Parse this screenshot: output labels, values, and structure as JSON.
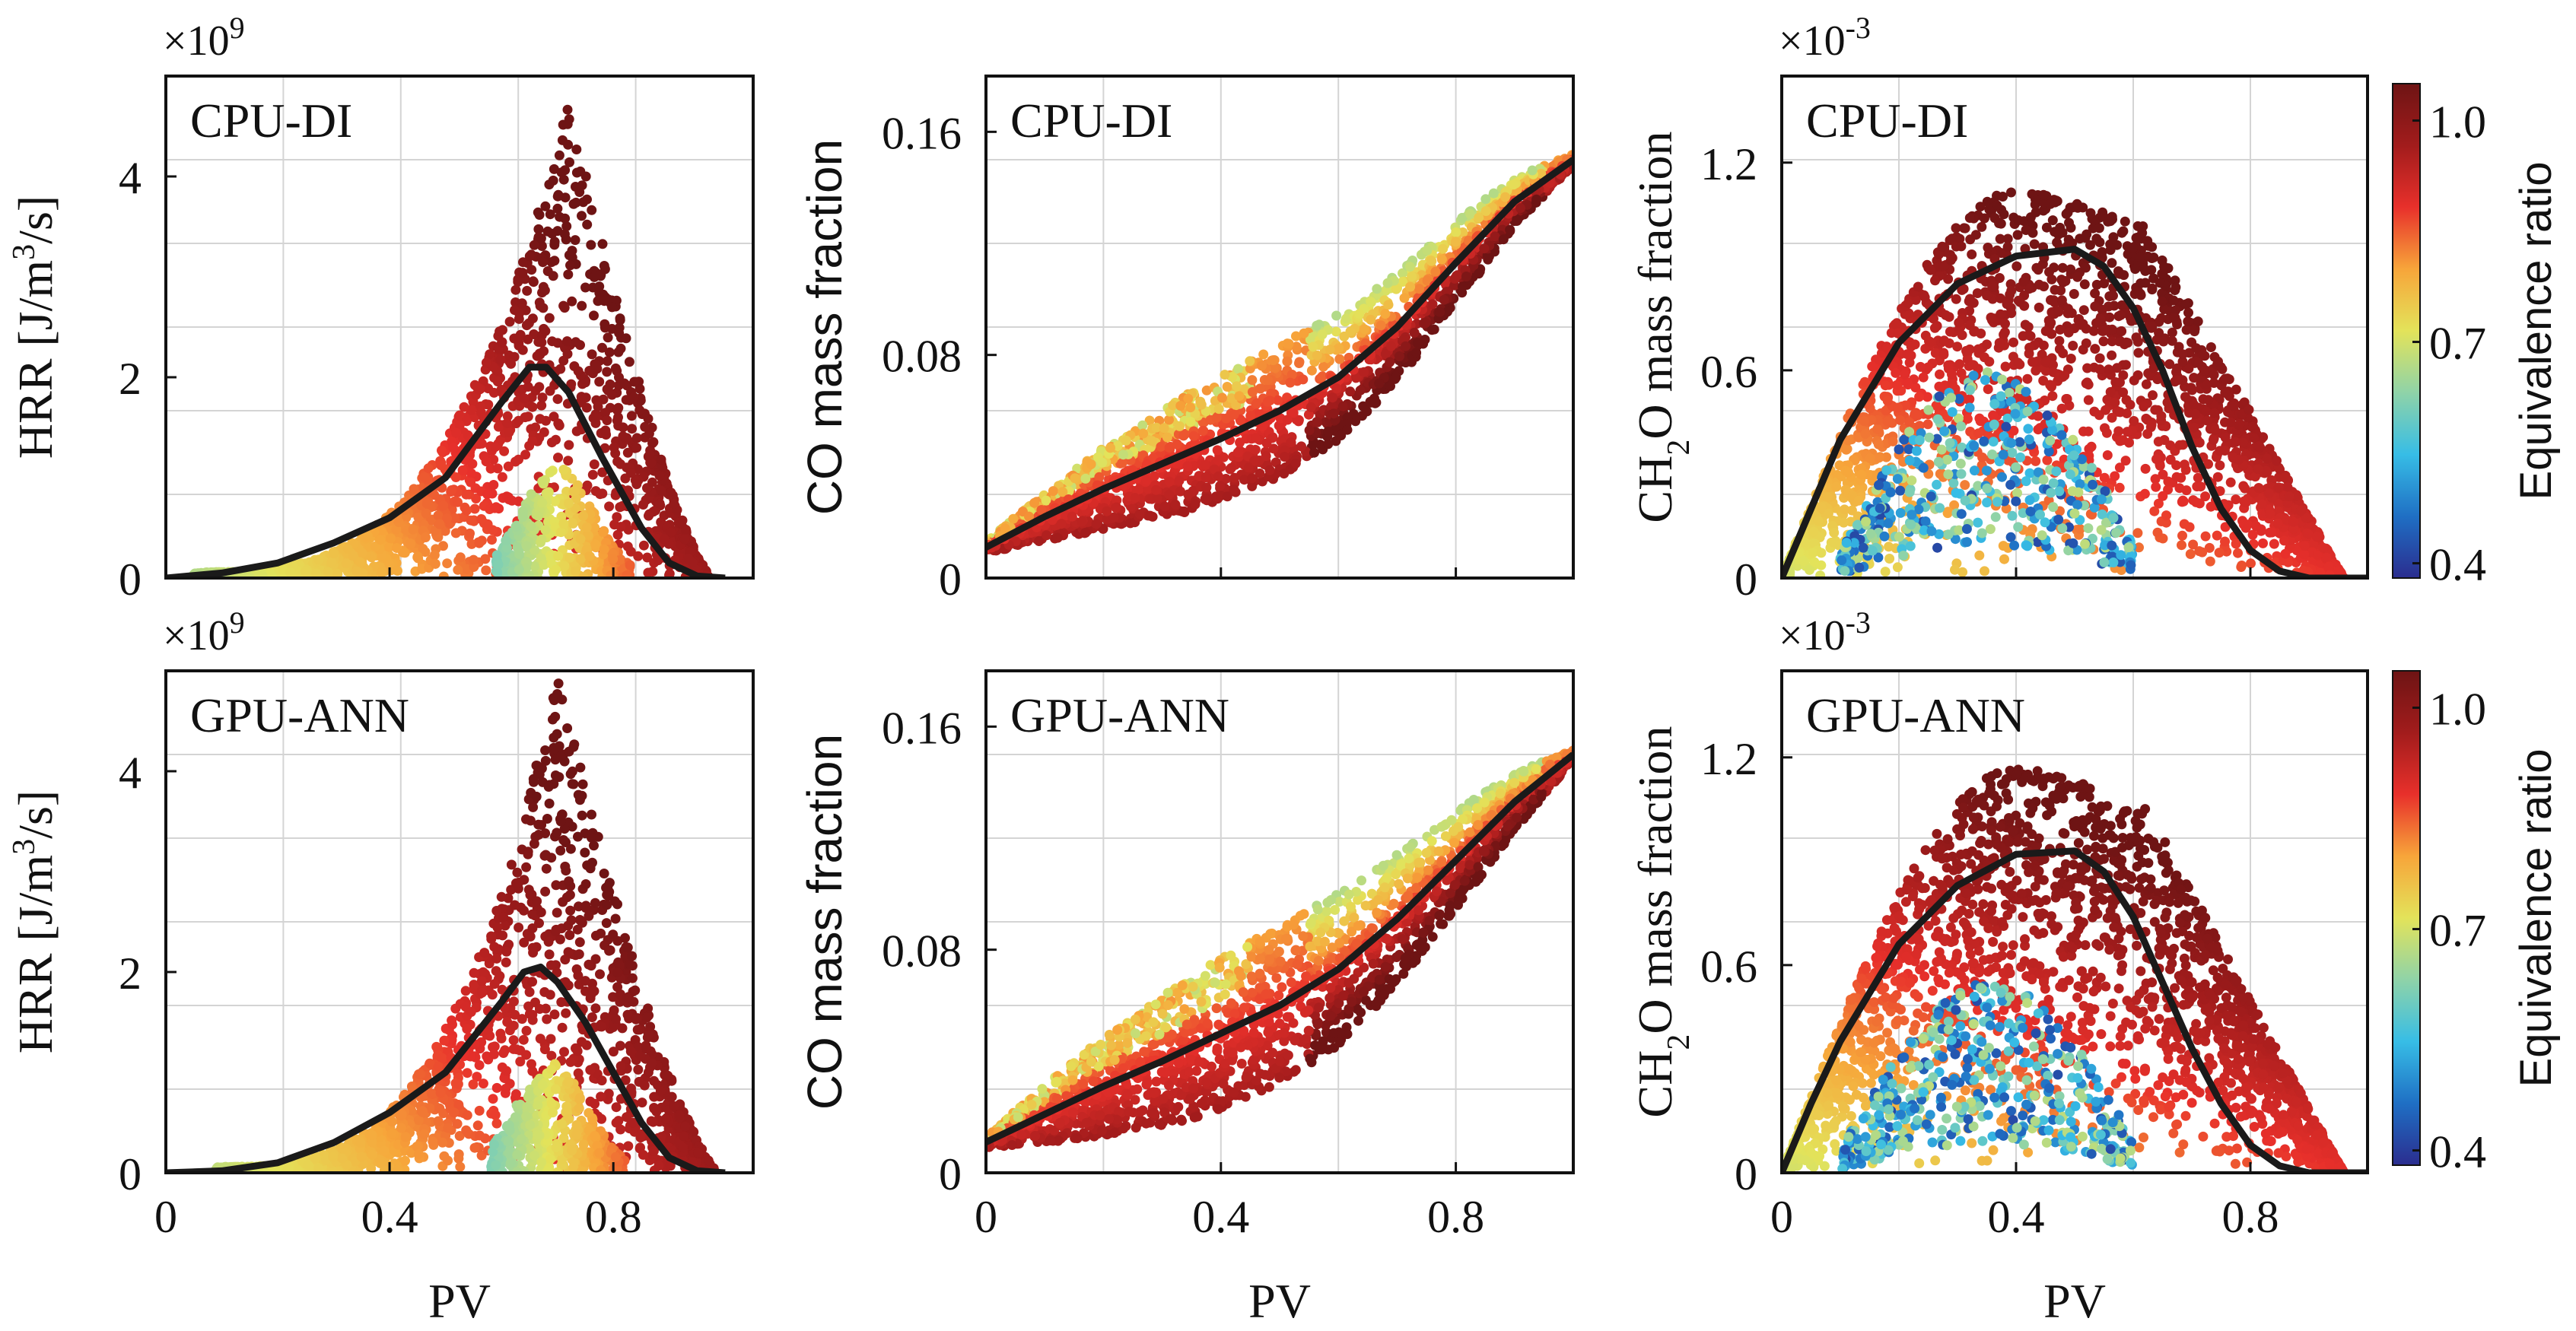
{
  "chart_data": [
    {
      "id": "hrr-cpu",
      "type": "scatter",
      "panel_label": "CPU-DI",
      "ylabel_pre": "HRR [J/m",
      "ylabel_sup": "3",
      "ylabel_post": "/s]",
      "xlabel": "",
      "scale_base": "×10",
      "scale_exp": "9",
      "xlim": [
        0,
        1.05
      ],
      "ylim": [
        0,
        5
      ],
      "xticks": [
        {
          "v": 0,
          "t": "0"
        },
        {
          "v": 0.4,
          "t": "0.4"
        },
        {
          "v": 0.8,
          "t": "0.8"
        }
      ],
      "yticks": [
        {
          "v": 0,
          "t": "0"
        },
        {
          "v": 2,
          "t": "2"
        },
        {
          "v": 4,
          "t": "4"
        }
      ],
      "show_xticklabels": false,
      "grid": true,
      "cloud": {
        "kind": "hrr",
        "peak_x": 0.72,
        "peak_y": 4.7,
        "left_x": 0.05,
        "right_x": 0.97,
        "bulge_x": 0.73
      },
      "mean_curve": {
        "x": [
          0,
          0.1,
          0.2,
          0.3,
          0.4,
          0.5,
          0.6,
          0.65,
          0.68,
          0.72,
          0.78,
          0.85,
          0.9,
          0.95,
          1.0
        ],
        "y": [
          0,
          0.05,
          0.15,
          0.35,
          0.6,
          1.0,
          1.75,
          2.1,
          2.1,
          1.85,
          1.2,
          0.5,
          0.15,
          0.02,
          0
        ]
      }
    },
    {
      "id": "co-cpu",
      "type": "scatter",
      "panel_label": "CPU-DI",
      "ylabel_pre": "CO mass fraction",
      "ylabel_sup": "",
      "ylabel_post": "",
      "xlabel": "",
      "scale_base": "",
      "scale_exp": "",
      "xlim": [
        0,
        1.0
      ],
      "ylim": [
        0,
        0.18
      ],
      "xticks": [
        {
          "v": 0,
          "t": "0"
        },
        {
          "v": 0.4,
          "t": "0.4"
        },
        {
          "v": 0.8,
          "t": "0.8"
        }
      ],
      "yticks": [
        {
          "v": 0,
          "t": "0"
        },
        {
          "v": 0.08,
          "t": "0.08"
        },
        {
          "v": 0.16,
          "t": "0.16"
        }
      ],
      "show_xticklabels": false,
      "grid": true,
      "cloud": {
        "kind": "co",
        "spread": 0.018
      },
      "mean_curve": {
        "x": [
          0,
          0.1,
          0.2,
          0.3,
          0.4,
          0.5,
          0.6,
          0.7,
          0.8,
          0.9,
          1.0
        ],
        "y": [
          0.011,
          0.022,
          0.032,
          0.041,
          0.05,
          0.06,
          0.072,
          0.09,
          0.113,
          0.135,
          0.15
        ]
      }
    },
    {
      "id": "ch2o-cpu",
      "type": "scatter",
      "panel_label": "CPU-DI",
      "ylabel_pre": "CH",
      "ylabel_sub": "2",
      "ylabel_post": "O mass fraction",
      "xlabel": "",
      "scale_base": "×10",
      "scale_exp": "-3",
      "xlim": [
        0,
        1.0
      ],
      "ylim": [
        0,
        1.45
      ],
      "xticks": [
        {
          "v": 0,
          "t": "0"
        },
        {
          "v": 0.4,
          "t": "0.4"
        },
        {
          "v": 0.8,
          "t": "0.8"
        }
      ],
      "yticks": [
        {
          "v": 0,
          "t": "0"
        },
        {
          "v": 0.6,
          "t": "0.6"
        },
        {
          "v": 1.2,
          "t": "1.2"
        }
      ],
      "show_xticklabels": false,
      "grid": true,
      "cloud": {
        "kind": "ch2o",
        "top_x": 0.42,
        "top_y": 1.13,
        "right_x": 0.96,
        "lean_x": 0.32,
        "lean_y": 0.6
      },
      "mean_curve": {
        "x": [
          0,
          0.05,
          0.1,
          0.2,
          0.3,
          0.4,
          0.5,
          0.55,
          0.6,
          0.65,
          0.7,
          0.75,
          0.8,
          0.85,
          0.9,
          1.0
        ],
        "y": [
          0,
          0.2,
          0.4,
          0.68,
          0.85,
          0.93,
          0.95,
          0.9,
          0.78,
          0.6,
          0.38,
          0.2,
          0.08,
          0.02,
          0,
          0
        ]
      },
      "colorbar": {
        "label": "Equivalence ratio",
        "ticks": [
          {
            "v": 0.4,
            "t": "0.4"
          },
          {
            "v": 0.7,
            "t": "0.7"
          },
          {
            "v": 1.0,
            "t": "1.0"
          }
        ],
        "range": [
          0.38,
          1.05
        ]
      }
    },
    {
      "id": "hrr-gpu",
      "type": "scatter",
      "panel_label": "GPU-ANN",
      "ylabel_pre": "HRR [J/m",
      "ylabel_sup": "3",
      "ylabel_post": "/s]",
      "xlabel": "PV",
      "scale_base": "×10",
      "scale_exp": "9",
      "xlim": [
        0,
        1.05
      ],
      "ylim": [
        0,
        5
      ],
      "xticks": [
        {
          "v": 0,
          "t": "0"
        },
        {
          "v": 0.4,
          "t": "0.4"
        },
        {
          "v": 0.8,
          "t": "0.8"
        }
      ],
      "yticks": [
        {
          "v": 0,
          "t": "0"
        },
        {
          "v": 2,
          "t": "2"
        },
        {
          "v": 4,
          "t": "4"
        }
      ],
      "show_xticklabels": true,
      "grid": true,
      "cloud": {
        "kind": "hrr",
        "peak_x": 0.7,
        "peak_y": 4.9,
        "left_x": 0.09,
        "right_x": 0.98,
        "bulge_x": 0.72
      },
      "mean_curve": {
        "x": [
          0,
          0.1,
          0.2,
          0.3,
          0.4,
          0.5,
          0.6,
          0.64,
          0.67,
          0.7,
          0.75,
          0.8,
          0.85,
          0.9,
          0.95,
          1.0
        ],
        "y": [
          0,
          0.02,
          0.1,
          0.3,
          0.6,
          1.0,
          1.7,
          2.0,
          2.05,
          1.9,
          1.5,
          1.0,
          0.5,
          0.15,
          0.02,
          0
        ]
      }
    },
    {
      "id": "co-gpu",
      "type": "scatter",
      "panel_label": "GPU-ANN",
      "ylabel_pre": "CO mass fraction",
      "ylabel_sup": "",
      "ylabel_post": "",
      "xlabel": "PV",
      "scale_base": "",
      "scale_exp": "",
      "xlim": [
        0,
        1.0
      ],
      "ylim": [
        0,
        0.18
      ],
      "xticks": [
        {
          "v": 0,
          "t": "0"
        },
        {
          "v": 0.4,
          "t": "0.4"
        },
        {
          "v": 0.8,
          "t": "0.8"
        }
      ],
      "yticks": [
        {
          "v": 0,
          "t": "0"
        },
        {
          "v": 0.08,
          "t": "0.08"
        },
        {
          "v": 0.16,
          "t": "0.16"
        }
      ],
      "show_xticklabels": true,
      "grid": true,
      "cloud": {
        "kind": "co",
        "spread": 0.022
      },
      "mean_curve": {
        "x": [
          0,
          0.1,
          0.2,
          0.3,
          0.4,
          0.5,
          0.6,
          0.7,
          0.8,
          0.9,
          1.0
        ],
        "y": [
          0.011,
          0.021,
          0.031,
          0.04,
          0.05,
          0.06,
          0.073,
          0.091,
          0.112,
          0.133,
          0.15
        ]
      }
    },
    {
      "id": "ch2o-gpu",
      "type": "scatter",
      "panel_label": "GPU-ANN",
      "ylabel_pre": "CH",
      "ylabel_sub": "2",
      "ylabel_post": "O mass fraction",
      "xlabel": "PV",
      "scale_base": "×10",
      "scale_exp": "-3",
      "xlim": [
        0,
        1.0
      ],
      "ylim": [
        0,
        1.45
      ],
      "xticks": [
        {
          "v": 0,
          "t": "0"
        },
        {
          "v": 0.4,
          "t": "0.4"
        },
        {
          "v": 0.8,
          "t": "0.8"
        }
      ],
      "yticks": [
        {
          "v": 0,
          "t": "0"
        },
        {
          "v": 0.6,
          "t": "0.6"
        },
        {
          "v": 1.2,
          "t": "1.2"
        }
      ],
      "show_xticklabels": true,
      "grid": true,
      "cloud": {
        "kind": "ch2o",
        "top_x": 0.42,
        "top_y": 1.18,
        "right_x": 0.96,
        "lean_x": 0.35,
        "lean_y": 0.55
      },
      "mean_curve": {
        "x": [
          0,
          0.05,
          0.1,
          0.2,
          0.3,
          0.4,
          0.5,
          0.55,
          0.6,
          0.65,
          0.7,
          0.75,
          0.8,
          0.85,
          0.9,
          1.0
        ],
        "y": [
          0,
          0.2,
          0.38,
          0.66,
          0.83,
          0.92,
          0.93,
          0.87,
          0.74,
          0.55,
          0.36,
          0.2,
          0.08,
          0.02,
          0,
          0
        ]
      },
      "colorbar": {
        "label": "Equivalence ratio",
        "ticks": [
          {
            "v": 0.4,
            "t": "0.4"
          },
          {
            "v": 0.7,
            "t": "0.7"
          },
          {
            "v": 1.0,
            "t": "1.0"
          }
        ],
        "range": [
          0.38,
          1.05
        ]
      }
    }
  ],
  "colors": {
    "colormap": [
      "#2b2d8f",
      "#1f6fc4",
      "#37bde6",
      "#8fd3a8",
      "#e3e35a",
      "#f7a53a",
      "#e8302b",
      "#a21c1c",
      "#6e1414"
    ],
    "mean_line": "#1a1a1a",
    "grid": "#d4d4d4",
    "frame": "#111111"
  }
}
